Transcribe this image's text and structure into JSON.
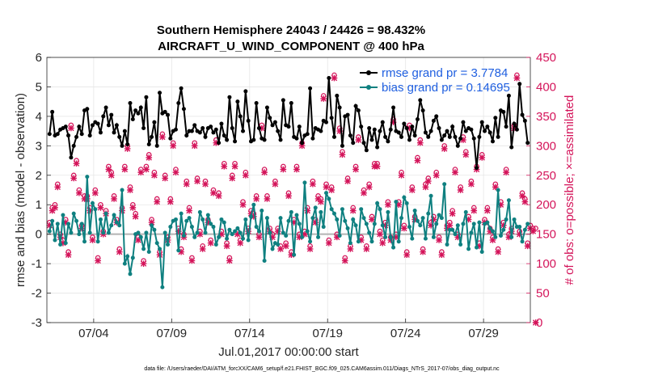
{
  "chart_data": {
    "type": "line",
    "title": "Southern Hemisphere 24043 / 24426 = 98.432%",
    "subtitle": "AIRCRAFT_U_WIND_COMPONENT @ 400 hPa",
    "xlabel": "Jul.01,2017 00:00:00 start",
    "ylabel": "rmse and bias (model - observation)",
    "ylabel_right": "# of obs: o=possible; ×=assimilated",
    "footer": "data file: /Users/raeder/DAI/ATM_forcXX/CAM6_setup/f.e21.FHIST_BGC.f09_025.CAM6assim.011/Diags_NTrS_2017-07/obs_diag_output.nc",
    "xlim": [
      1.0,
      32.0
    ],
    "ylim": [
      -3,
      6
    ],
    "ylim_right": [
      0,
      450
    ],
    "yticks": [
      -3,
      -2,
      -1,
      0,
      1,
      2,
      3,
      4,
      5,
      6
    ],
    "yticks_right": [
      0,
      50,
      100,
      150,
      200,
      250,
      300,
      350,
      400,
      450
    ],
    "xticks": [
      {
        "value": 4.0,
        "label": "07/04"
      },
      {
        "value": 9.0,
        "label": "07/09"
      },
      {
        "value": 14.0,
        "label": "07/14"
      },
      {
        "value": 19.0,
        "label": "07/19"
      },
      {
        "value": 24.0,
        "label": "07/24"
      },
      {
        "value": 29.0,
        "label": "07/29"
      }
    ],
    "grid": true,
    "legend_position": "top-right",
    "series": [
      {
        "name": "rmse",
        "legend": "rmse grand pr = 3.7784",
        "color": "#000000",
        "values": [
          3.4,
          4.15,
          3.35,
          3.4,
          3.55,
          3.6,
          3.65,
          3.35,
          2.6,
          3.0,
          3.3,
          3.65,
          3.4,
          4.2,
          4.25,
          3.35,
          3.7,
          3.8,
          3.75,
          3.45,
          4.0,
          4.3,
          3.7,
          4.05,
          3.45,
          3.7,
          3.3,
          3.0,
          3.5,
          3.05,
          4.45,
          3.9,
          4.2,
          4.1,
          4.3,
          3.6,
          4.65,
          3.05,
          3.3,
          3.8,
          3.0,
          4.8,
          4.1,
          4.15,
          4.05,
          3.25,
          3.5,
          3.55,
          4.45,
          4.95,
          4.25,
          3.35,
          3.5,
          3.5,
          3.7,
          3.5,
          3.45,
          3.6,
          3.3,
          3.6,
          3.65,
          3.45,
          3.55,
          3.1,
          3.75,
          3.35,
          3.2,
          4.65,
          3.6,
          3.15,
          4.5,
          4.0,
          3.5,
          4.85,
          3.85,
          3.15,
          3.2,
          4.45,
          3.6,
          3.25,
          3.2,
          4.3,
          3.95,
          3.7,
          3.8,
          3.5,
          3.2,
          4.55,
          3.7,
          3.65,
          4.45,
          3.3,
          3.25,
          3.65,
          3.1,
          3.35,
          3.4,
          4.95,
          3.25,
          3.6,
          3.55,
          3.5,
          3.85,
          3.8,
          5.3,
          3.95,
          3.3,
          4.7,
          4.3,
          3.0,
          4.0,
          4.05,
          3.35,
          3.1,
          4.35,
          4.2,
          3.65,
          3.1,
          2.85,
          3.6,
          3.2,
          3.55,
          2.95,
          3.5,
          3.8,
          3.3,
          3.15,
          3.55,
          4.3,
          3.5,
          3.45,
          3.3,
          3.75,
          3.6,
          3.2,
          3.65,
          3.35,
          3.9,
          4.55,
          4.2,
          3.45,
          3.3,
          3.5,
          3.85,
          4.0,
          3.6,
          3.2,
          3.35,
          3.5,
          3.3,
          3.65,
          3.3,
          3.0,
          3.25,
          3.8,
          3.5,
          3.6,
          3.55,
          3.25,
          2.25,
          3.3,
          3.8,
          3.5,
          3.65,
          3.45,
          3.15,
          3.95,
          3.3,
          4.2,
          4.15,
          3.65,
          4.7,
          2.95,
          3.75,
          3.55,
          5.1,
          4.05,
          3.85,
          3.1
        ]
      },
      {
        "name": "bias",
        "legend": "bias grand pr = 0.14695",
        "color": "#0f8080",
        "values": [
          0.1,
          0.45,
          -0.2,
          0.35,
          -0.35,
          0.65,
          -0.3,
          0.35,
          0.05,
          0.7,
          0.45,
          0.0,
          0.35,
          -0.25,
          1.95,
          0.05,
          1.05,
          0.85,
          -0.25,
          0.5,
          0.05,
          0.7,
          0.05,
          0.3,
          0.65,
          0.4,
          0.3,
          1.5,
          -1.0,
          -0.75,
          -1.35,
          -0.8,
          0.0,
          0.05,
          -0.1,
          -0.5,
          0.05,
          -0.6,
          0.3,
          0.15,
          -0.3,
          -0.5,
          -1.8,
          0.05,
          -0.35,
          0.25,
          0.45,
          0.5,
          -0.55,
          0.7,
          -0.05,
          0.45,
          0.55,
          0.25,
          -0.1,
          0.05,
          0.75,
          0.5,
          0.05,
          0.65,
          0.35,
          0.25,
          -0.35,
          -0.1,
          0.5,
          0.4,
          -0.15,
          0.15,
          0.0,
          0.1,
          0.2,
          0.05,
          -0.15,
          0.5,
          -0.2,
          0.6,
          1.0,
          0.25,
          0.1,
          0.8,
          -0.9,
          0.55,
          0.05,
          -0.5,
          -0.3,
          -0.35,
          0.55,
          0.05,
          -0.05,
          0.45,
          0.75,
          -0.7,
          0.65,
          0.35,
          -0.1,
          1.75,
          0.1,
          -0.25,
          0.55,
          0.9,
          -0.1,
          0.75,
          0.25,
          1.4,
          1.2,
          0.85,
          0.7,
          0.5,
          -0.05,
          0.85,
          0.45,
          0.2,
          -0.3,
          0.5,
          0.3,
          -0.25,
          0.85,
          0.55,
          0.35,
          0.05,
          -0.25,
          0.35,
          1.05,
          0.85,
          0.3,
          -0.1,
          0.75,
          -0.1,
          -0.45,
          1.1,
          -0.25,
          0.55,
          1.25,
          1.05,
          0.25,
          -0.15,
          0.8,
          0.45,
          0.3,
          0.55,
          -0.15,
          0.7,
          1.3,
          -0.1,
          0.35,
          0.65,
          0.55,
          1.7,
          -0.35,
          0.15,
          0.15,
          0.0,
          0.3,
          -0.35,
          0.35,
          0.75,
          -0.5,
          0.05,
          0.35,
          -0.45,
          0.4,
          -0.6,
          0.35,
          0.4,
          0.2,
          0.1,
          -0.1,
          1.5,
          -0.05,
          0.15,
          0.5,
          1.15,
          -0.1,
          0.5,
          0.25,
          0.25,
          -0.25,
          0.15,
          0.35
        ]
      },
      {
        "name": "obs_possible",
        "marker": "o",
        "axis": "right",
        "color": "#d4145a",
        "values": [
          170,
          195,
          200,
          235,
          150,
          140,
          175,
          120,
          335,
          250,
          275,
          225,
          165,
          215,
          215,
          195,
          145,
          225,
          110,
          200,
          155,
          190,
          265,
          255,
          215,
          175,
          125,
          195,
          265,
          300,
          230,
          200,
          185,
          145,
          260,
          105,
          265,
          285,
          175,
          255,
          210,
          120,
          320,
          250,
          145,
          210,
          305,
          260,
          160,
          125,
          150,
          240,
          195,
          110,
          305,
          245,
          155,
          130,
          240,
          175,
          140,
          225,
          310,
          220,
          155,
          270,
          135,
          110,
          250,
          270,
          155,
          140,
          205,
          255,
          160,
          190,
          185,
          215,
          150,
          335,
          260,
          215,
          160,
          150,
          240,
          160,
          130,
          265,
          135,
          220,
          120,
          175,
          265,
          150,
          305,
          155,
          195,
          130,
          240,
          175,
          215,
          210,
          385,
          235,
          140,
          230,
          420,
          150,
          330,
          290,
          110,
          245,
          130,
          195,
          265,
          315,
          145,
          225,
          130,
          235,
          180,
          270,
          270,
          155,
          140,
          170,
          205,
          145,
          345,
          150,
          205,
          255,
          165,
          120,
          335,
          230,
          180,
          280,
          310,
          125,
          235,
          245,
          170,
          180,
          255,
          145,
          120,
          300,
          165,
          170,
          190,
          260,
          150,
          230,
          315,
          290,
          180,
          240,
          195,
          265,
          135,
          285,
          175,
          195,
          160,
          145,
          235,
          125,
          205,
          170,
          260,
          150,
          160,
          335,
          420,
          155,
          220,
          210,
          135,
          165,
          160,
          160
        ]
      },
      {
        "name": "obs_assimilated",
        "marker": "x",
        "axis": "right",
        "color": "#d4145a",
        "values": [
          165,
          190,
          195,
          230,
          145,
          135,
          170,
          115,
          330,
          245,
          270,
          220,
          160,
          210,
          210,
          190,
          140,
          220,
          105,
          195,
          150,
          185,
          260,
          250,
          210,
          170,
          120,
          190,
          260,
          295,
          225,
          195,
          180,
          140,
          255,
          100,
          260,
          280,
          170,
          250,
          205,
          115,
          315,
          245,
          140,
          205,
          300,
          255,
          155,
          120,
          145,
          235,
          190,
          105,
          300,
          240,
          150,
          125,
          235,
          170,
          135,
          220,
          305,
          215,
          150,
          265,
          130,
          105,
          245,
          265,
          150,
          135,
          200,
          250,
          155,
          185,
          180,
          210,
          145,
          330,
          255,
          210,
          155,
          145,
          235,
          155,
          125,
          260,
          130,
          215,
          115,
          170,
          260,
          145,
          300,
          150,
          190,
          125,
          235,
          170,
          210,
          205,
          380,
          230,
          135,
          225,
          415,
          145,
          325,
          285,
          105,
          240,
          125,
          190,
          260,
          310,
          140,
          220,
          125,
          230,
          175,
          265,
          265,
          150,
          135,
          165,
          200,
          140,
          340,
          145,
          200,
          250,
          160,
          115,
          330,
          225,
          175,
          275,
          305,
          120,
          230,
          240,
          165,
          175,
          250,
          140,
          115,
          295,
          160,
          165,
          185,
          255,
          145,
          225,
          310,
          285,
          175,
          235,
          190,
          260,
          130,
          280,
          170,
          190,
          155,
          140,
          230,
          120,
          200,
          165,
          255,
          145,
          155,
          330,
          415,
          150,
          215,
          205,
          130,
          160,
          155,
          0
        ]
      }
    ]
  }
}
